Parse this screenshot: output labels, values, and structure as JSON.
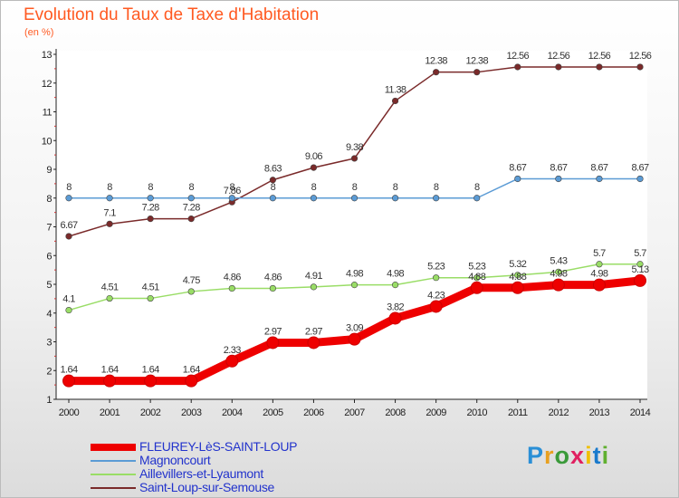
{
  "chart_data": {
    "type": "line",
    "title": "Evolution du Taux de Taxe d'Habitation",
    "subtitle": "(en %)",
    "x": [
      "2000",
      "2001",
      "2002",
      "2003",
      "2004",
      "2005",
      "2006",
      "2007",
      "2008",
      "2009",
      "2010",
      "2011",
      "2012",
      "2013",
      "2014"
    ],
    "ylim": [
      1,
      13
    ],
    "yticks": [
      "1",
      "2",
      "3",
      "4",
      "5",
      "6",
      "7",
      "8",
      "9",
      "10",
      "11",
      "12",
      "13"
    ],
    "grid": false,
    "legend_position": "bottom-left",
    "series": [
      {
        "name": "FLEUREY-LèS-SAINT-LOUP",
        "color": "#ee0000",
        "values": [
          1.64,
          1.64,
          1.64,
          1.64,
          2.33,
          2.97,
          2.97,
          3.09,
          3.82,
          4.23,
          4.88,
          4.88,
          4.98,
          4.98,
          5.13
        ],
        "labels": [
          "1.64",
          "1.64",
          "1.64",
          "1.64",
          "2.33",
          "2.97",
          "2.97",
          "3.09",
          "3.82",
          "4.23",
          "4.88",
          "4.88",
          "4.98",
          "4.98",
          "5.13"
        ]
      },
      {
        "name": "Magnoncourt",
        "color": "#5b9bd5",
        "values": [
          8,
          8,
          8,
          8,
          8,
          8,
          8,
          8,
          8,
          8,
          8,
          8.67,
          8.67,
          8.67,
          8.67
        ],
        "labels": [
          "8",
          "8",
          "8",
          "8",
          "8",
          "8",
          "8",
          "8",
          "8",
          "8",
          "8",
          "8.67",
          "8.67",
          "8.67",
          "8.67"
        ]
      },
      {
        "name": "Aillevillers-et-Lyaumont",
        "color": "#99dd66",
        "values": [
          4.1,
          4.51,
          4.51,
          4.75,
          4.86,
          4.86,
          4.91,
          4.98,
          4.98,
          5.23,
          5.23,
          5.32,
          5.43,
          5.7,
          5.7
        ],
        "labels": [
          "4.1",
          "4.51",
          "4.51",
          "4.75",
          "4.86",
          "4.86",
          "4.91",
          "4.98",
          "4.98",
          "5.23",
          "5.23",
          "5.32",
          "5.43",
          "5.7",
          "5.7"
        ]
      },
      {
        "name": "Saint-Loup-sur-Semouse",
        "color": "#7a2a2a",
        "values": [
          6.67,
          7.1,
          7.28,
          7.28,
          7.86,
          8.63,
          9.06,
          9.38,
          11.38,
          12.38,
          12.38,
          12.56,
          12.56,
          12.56,
          12.56
        ],
        "labels": [
          "6.67",
          "7.1",
          "7.28",
          "7.28",
          "7.86",
          "8.63",
          "9.06",
          "9.38",
          "11.38",
          "12.38",
          "12.38",
          "12.56",
          "12.56",
          "12.56",
          "12.56"
        ]
      }
    ]
  },
  "logo": {
    "letters": [
      "P",
      "r",
      "o",
      "x",
      "i",
      "t",
      "i"
    ],
    "colors": [
      "#2a8fd6",
      "#e8a020",
      "#3a9a3a",
      "#e02060",
      "#f0c000",
      "#1a7acc",
      "#60b030"
    ]
  }
}
